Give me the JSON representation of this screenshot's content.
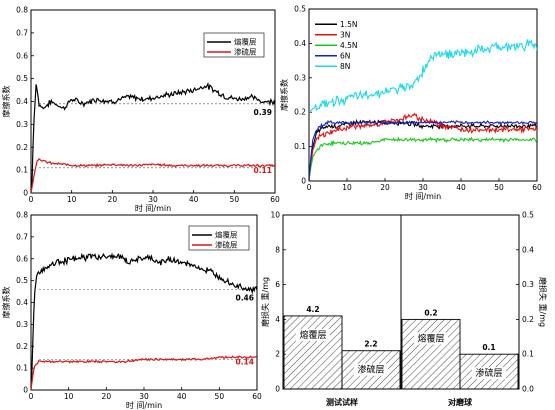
{
  "chart_data": [
    {
      "type": "line",
      "xlabel": "时 间/min",
      "ylabel": "摩擦系数",
      "xlim": [
        0,
        60
      ],
      "ylim": [
        0,
        0.8
      ],
      "xticks": [
        0,
        10,
        20,
        30,
        40,
        50,
        60
      ],
      "yticks": [
        0.0,
        0.1,
        0.2,
        0.3,
        0.4,
        0.5,
        0.6,
        0.7,
        0.8
      ],
      "legend_position": "top-right",
      "series": [
        {
          "name": "熔覆层",
          "color": "#000000",
          "x": [
            0,
            0.3,
            0.6,
            0.9,
            1.2,
            1.6,
            2,
            3,
            5,
            8,
            10,
            13,
            16,
            20,
            24,
            28,
            31,
            34,
            37,
            40,
            43,
            45,
            48,
            51,
            54,
            57,
            60
          ],
          "y": [
            0,
            0.05,
            0.28,
            0.36,
            0.48,
            0.44,
            0.39,
            0.37,
            0.4,
            0.37,
            0.41,
            0.39,
            0.41,
            0.4,
            0.42,
            0.41,
            0.42,
            0.43,
            0.44,
            0.45,
            0.47,
            0.45,
            0.42,
            0.41,
            0.42,
            0.4,
            0.4
          ]
        },
        {
          "name": "渗硫层",
          "color": "#d81818",
          "x": [
            0,
            0.3,
            0.6,
            1,
            1.5,
            2,
            3,
            5,
            8,
            12,
            16,
            20,
            25,
            30,
            35,
            40,
            45,
            50,
            55,
            60
          ],
          "y": [
            0,
            0.03,
            0.06,
            0.1,
            0.14,
            0.15,
            0.14,
            0.13,
            0.125,
            0.12,
            0.12,
            0.125,
            0.12,
            0.125,
            0.12,
            0.12,
            0.12,
            0.12,
            0.12,
            0.12
          ]
        }
      ],
      "reference_lines": [
        {
          "y": 0.39,
          "label": "0.39"
        },
        {
          "y": 0.11,
          "label": "0.11"
        }
      ],
      "annotations": [
        "0.39",
        "0.11"
      ]
    },
    {
      "type": "line",
      "xlabel": "时 间/min",
      "ylabel": "摩擦系数",
      "xlim": [
        0,
        60
      ],
      "ylim": [
        0,
        0.5
      ],
      "xticks": [
        0,
        10,
        20,
        30,
        40,
        50,
        60
      ],
      "yticks": [
        0.0,
        0.1,
        0.2,
        0.3,
        0.4,
        0.5
      ],
      "legend_position": "top-left",
      "series": [
        {
          "name": "1.5N",
          "color": "#000000",
          "x": [
            0,
            0.5,
            1,
            2,
            3,
            5,
            8,
            12,
            16,
            20,
            25,
            30,
            35,
            40,
            45,
            50,
            55,
            60
          ],
          "y": [
            0,
            0.06,
            0.1,
            0.14,
            0.15,
            0.16,
            0.16,
            0.17,
            0.17,
            0.17,
            0.17,
            0.16,
            0.16,
            0.16,
            0.16,
            0.16,
            0.16,
            0.16
          ]
        },
        {
          "name": "3N",
          "color": "#e01010",
          "x": [
            0,
            0.5,
            1,
            2,
            3,
            5,
            8,
            12,
            16,
            20,
            24,
            27,
            30,
            33,
            36,
            40,
            45,
            50,
            55,
            60
          ],
          "y": [
            0,
            0.05,
            0.09,
            0.12,
            0.13,
            0.14,
            0.15,
            0.16,
            0.16,
            0.17,
            0.18,
            0.19,
            0.18,
            0.17,
            0.16,
            0.15,
            0.15,
            0.15,
            0.15,
            0.15
          ]
        },
        {
          "name": "4.5N",
          "color": "#18c818",
          "x": [
            0,
            0.5,
            1,
            2,
            3,
            5,
            8,
            12,
            16,
            20,
            25,
            30,
            35,
            40,
            45,
            50,
            55,
            60
          ],
          "y": [
            0,
            0.04,
            0.07,
            0.09,
            0.1,
            0.11,
            0.11,
            0.11,
            0.11,
            0.12,
            0.12,
            0.12,
            0.12,
            0.12,
            0.12,
            0.12,
            0.12,
            0.12
          ]
        },
        {
          "name": "6N",
          "color": "#1020c8",
          "x": [
            0,
            0.5,
            1,
            2,
            3,
            5,
            8,
            12,
            16,
            20,
            25,
            30,
            35,
            40,
            45,
            50,
            55,
            60
          ],
          "y": [
            0,
            0.07,
            0.12,
            0.15,
            0.16,
            0.17,
            0.17,
            0.17,
            0.17,
            0.17,
            0.17,
            0.17,
            0.17,
            0.17,
            0.17,
            0.17,
            0.17,
            0.17
          ]
        },
        {
          "name": "8N",
          "color": "#20d8e8",
          "x": [
            0,
            1,
            3,
            6,
            10,
            15,
            20,
            25,
            27,
            28,
            29,
            30,
            31,
            32,
            33,
            35,
            40,
            45,
            50,
            55,
            58,
            60
          ],
          "y": [
            0.2,
            0.21,
            0.22,
            0.23,
            0.24,
            0.25,
            0.26,
            0.27,
            0.28,
            0.29,
            0.3,
            0.32,
            0.34,
            0.36,
            0.37,
            0.37,
            0.37,
            0.38,
            0.39,
            0.39,
            0.4,
            0.39
          ]
        }
      ]
    },
    {
      "type": "line",
      "xlabel": "时 间/min",
      "ylabel": "摩擦系数",
      "xlim": [
        0,
        60
      ],
      "ylim": [
        0,
        0.8
      ],
      "xticks": [
        0,
        10,
        20,
        30,
        40,
        50,
        60
      ],
      "yticks": [
        0.0,
        0.1,
        0.2,
        0.3,
        0.4,
        0.5,
        0.6,
        0.7,
        0.8
      ],
      "legend_position": "top-right",
      "series": [
        {
          "name": "熔覆层",
          "color": "#000000",
          "x": [
            0,
            0.3,
            0.6,
            1,
            1.5,
            2,
            3,
            5,
            8,
            12,
            16,
            20,
            24,
            26,
            28,
            30,
            32,
            34,
            37,
            40,
            43,
            46,
            48,
            50,
            52,
            54,
            56,
            58,
            60
          ],
          "y": [
            0,
            0.1,
            0.3,
            0.45,
            0.52,
            0.54,
            0.55,
            0.57,
            0.59,
            0.6,
            0.61,
            0.61,
            0.61,
            0.58,
            0.6,
            0.6,
            0.6,
            0.58,
            0.6,
            0.58,
            0.57,
            0.55,
            0.54,
            0.52,
            0.5,
            0.48,
            0.47,
            0.46,
            0.46
          ]
        },
        {
          "name": "渗硫层",
          "color": "#d81818",
          "x": [
            0,
            0.3,
            0.6,
            1,
            1.5,
            2,
            4,
            8,
            12,
            16,
            20,
            25,
            30,
            35,
            40,
            45,
            50,
            55,
            60
          ],
          "y": [
            0,
            0.04,
            0.08,
            0.11,
            0.12,
            0.13,
            0.13,
            0.13,
            0.13,
            0.13,
            0.13,
            0.13,
            0.14,
            0.14,
            0.14,
            0.14,
            0.15,
            0.15,
            0.15
          ]
        }
      ],
      "reference_lines": [
        {
          "y": 0.46,
          "label": "0.46"
        },
        {
          "y": 0.14,
          "label": "0.14"
        }
      ],
      "annotations": [
        "0.46",
        "0.14"
      ]
    },
    {
      "type": "bar",
      "groups": [
        "测试试样",
        "对磨球"
      ],
      "left_axis": {
        "label": "磨损失 重/mg",
        "lim": [
          0,
          10
        ],
        "ticks": [
          0,
          2,
          4,
          6,
          8,
          10
        ]
      },
      "right_axis": {
        "label": "磨损失 重/mg",
        "lim": [
          0,
          0.5
        ],
        "ticks": [
          0.0,
          0.1,
          0.2,
          0.3,
          0.4,
          0.5
        ]
      },
      "bars": [
        {
          "group": "测试试样",
          "category": "熔覆层",
          "value": 4.2,
          "label": "4.2",
          "axis": "left"
        },
        {
          "group": "测试试样",
          "category": "渗硫层",
          "value": 2.2,
          "label": "2.2",
          "axis": "left"
        },
        {
          "group": "对磨球",
          "category": "熔覆层",
          "value": 0.2,
          "label": "0.2",
          "axis": "right"
        },
        {
          "group": "对磨球",
          "category": "渗硫层",
          "value": 0.1,
          "label": "0.1",
          "axis": "right"
        }
      ],
      "fill": "diagonal hatch"
    }
  ]
}
